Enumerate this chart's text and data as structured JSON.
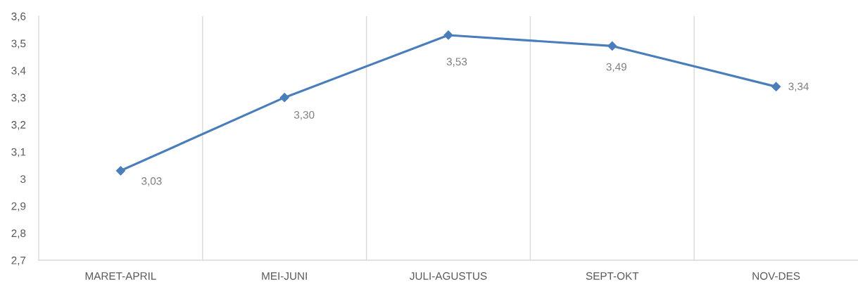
{
  "chart_data": {
    "type": "line",
    "categories": [
      "MARET-APRIL",
      "MEI-JUNI",
      "JULI-AGUSTUS",
      "SEPT-OKT",
      "NOV-DES"
    ],
    "series": [
      {
        "color": "#4a7ebb",
        "values": [
          3.03,
          3.3,
          3.53,
          3.49,
          3.34
        ],
        "value_labels": [
          "3,03",
          "3,30",
          "3,53",
          "3,49",
          "3,34"
        ]
      }
    ],
    "ylim": [
      2.7,
      3.6
    ],
    "yticks": [
      {
        "value": 2.7,
        "label": "2,7"
      },
      {
        "value": 2.8,
        "label": "2,8"
      },
      {
        "value": 2.9,
        "label": "2,9"
      },
      {
        "value": 3,
        "label": "3"
      },
      {
        "value": 3.1,
        "label": "3,1"
      },
      {
        "value": 3.2,
        "label": "3,2"
      },
      {
        "value": 3.3,
        "label": "3,3"
      },
      {
        "value": 3.4,
        "label": "3,4"
      },
      {
        "value": 3.5,
        "label": "3,5"
      },
      {
        "value": 3.6,
        "label": "3,6"
      }
    ],
    "grid": "x",
    "marker": "diamond",
    "line_style": "solid"
  }
}
